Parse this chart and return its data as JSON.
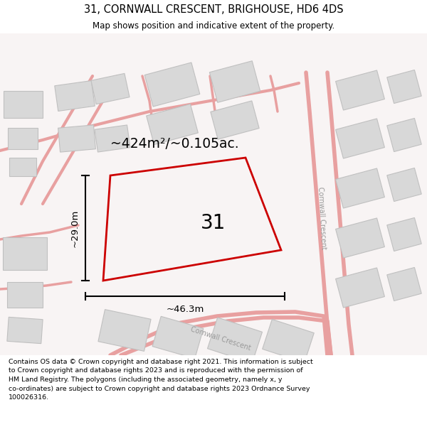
{
  "title": "31, CORNWALL CRESCENT, BRIGHOUSE, HD6 4DS",
  "subtitle": "Map shows position and indicative extent of the property.",
  "footer": "Contains OS data © Crown copyright and database right 2021. This information is subject to Crown copyright and database rights 2023 and is reproduced with the permission of HM Land Registry. The polygons (including the associated geometry, namely x, y co-ordinates) are subject to Crown copyright and database rights 2023 Ordnance Survey 100026316.",
  "area_text": "~424m²/~0.105ac.",
  "dim_h": "~29.0m",
  "dim_w": "~46.3m",
  "plot_label": "31",
  "street_label_right": "Cornwall Crescent",
  "street_label_lower": "Cornwall Crescent",
  "map_bg": "#ffffff",
  "building_face": "#d8d8d8",
  "building_edge": "#c0c0c0",
  "road_color": "#e8a0a0",
  "plot_edge": "#cc0000",
  "plot_face": "none"
}
